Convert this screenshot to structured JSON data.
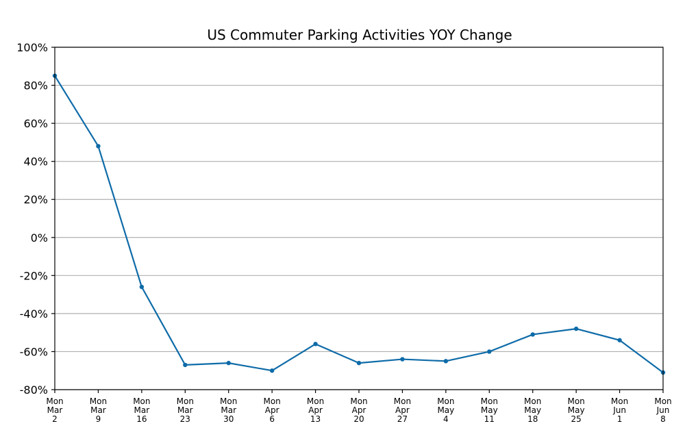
{
  "chart_data": {
    "type": "line",
    "title": "US Commuter Parking Activities YOY Change",
    "xlabel": "",
    "ylabel": "",
    "categories": [
      [
        "Mon",
        "Mar",
        "2"
      ],
      [
        "Mon",
        "Mar",
        "9"
      ],
      [
        "Mon",
        "Mar",
        "16"
      ],
      [
        "Mon",
        "Mar",
        "23"
      ],
      [
        "Mon",
        "Mar",
        "30"
      ],
      [
        "Mon",
        "Apr",
        "6"
      ],
      [
        "Mon",
        "Apr",
        "13"
      ],
      [
        "Mon",
        "Apr",
        "20"
      ],
      [
        "Mon",
        "Apr",
        "27"
      ],
      [
        "Mon",
        "May",
        "4"
      ],
      [
        "Mon",
        "May",
        "11"
      ],
      [
        "Mon",
        "May",
        "18"
      ],
      [
        "Mon",
        "May",
        "25"
      ],
      [
        "Mon",
        "Jun",
        "1"
      ],
      [
        "Mon",
        "Jun",
        "8"
      ]
    ],
    "series": [
      {
        "values": [
          85,
          48,
          -26,
          -67,
          -66,
          -70,
          -56,
          -66,
          -64,
          -65,
          -60,
          -51,
          -48,
          -54,
          -71
        ]
      }
    ],
    "ylim": [
      -80,
      100
    ],
    "yticks": [
      -80,
      -60,
      -40,
      -20,
      0,
      20,
      40,
      60,
      80,
      100
    ],
    "ytick_format": "percent",
    "grid": "horizontal",
    "legend": "none",
    "colors": {
      "line": "#0e6ba8",
      "marker": "#0e6ba8"
    }
  }
}
